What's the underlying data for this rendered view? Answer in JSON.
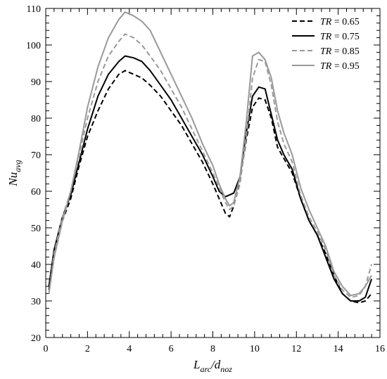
{
  "chart_data": {
    "type": "line",
    "xlabel": "L_arc/d_noz",
    "ylabel": "Nu_avg",
    "xlim": [
      0,
      16
    ],
    "ylim": [
      20,
      110
    ],
    "xticks": [
      0,
      2,
      4,
      6,
      8,
      10,
      12,
      14,
      16
    ],
    "yticks": [
      20,
      30,
      40,
      50,
      60,
      70,
      80,
      90,
      100,
      110
    ],
    "grid": false,
    "legend_position": "top-right",
    "series": [
      {
        "name": "TR = 0.65",
        "style": "dashed",
        "color": "#000000",
        "x": [
          0.15,
          0.4,
          0.8,
          1.2,
          1.6,
          2.0,
          2.5,
          3.0,
          3.5,
          3.8,
          4.2,
          4.6,
          5.0,
          5.5,
          6.0,
          6.5,
          7.0,
          7.5,
          8.0,
          8.3,
          8.6,
          8.8,
          9.0,
          9.3,
          9.6,
          9.9,
          10.2,
          10.5,
          10.8,
          11.1,
          11.4,
          11.8,
          12.2,
          12.6,
          13.0,
          13.4,
          13.8,
          14.2,
          14.6,
          15.0,
          15.3,
          15.6
        ],
        "y": [
          33,
          42,
          52,
          58,
          67,
          75,
          82,
          88,
          92,
          93,
          92,
          91,
          89,
          86,
          82,
          78,
          73,
          68,
          62,
          58,
          54,
          53,
          56,
          63,
          74,
          83,
          85.5,
          85,
          80,
          72,
          69,
          65,
          58,
          52,
          48,
          43,
          37,
          32,
          30,
          29.5,
          30,
          32
        ]
      },
      {
        "name": "TR = 0.75",
        "style": "solid",
        "color": "#000000",
        "x": [
          0.15,
          0.4,
          0.8,
          1.2,
          1.6,
          2.0,
          2.5,
          3.0,
          3.5,
          3.8,
          4.2,
          4.6,
          5.0,
          5.5,
          6.0,
          6.5,
          7.0,
          7.5,
          8.0,
          8.3,
          8.6,
          8.8,
          9.0,
          9.3,
          9.6,
          9.9,
          10.2,
          10.5,
          10.8,
          11.1,
          11.4,
          11.8,
          12.2,
          12.6,
          13.0,
          13.4,
          13.8,
          14.2,
          14.6,
          15.0,
          15.3,
          15.6
        ],
        "y": [
          34,
          44,
          53,
          59,
          68,
          77,
          86,
          92,
          95.5,
          97,
          96.5,
          95.5,
          93,
          89,
          85,
          80,
          75,
          70,
          64,
          60,
          58.5,
          59,
          59.5,
          64,
          76,
          86,
          88.5,
          88,
          81,
          74,
          70,
          66,
          58,
          52,
          48,
          42,
          36,
          32,
          30,
          30,
          31,
          36
        ]
      },
      {
        "name": "TR = 0.85",
        "style": "dashed",
        "color": "#999999",
        "x": [
          0.15,
          0.4,
          0.8,
          1.2,
          1.6,
          2.0,
          2.5,
          3.0,
          3.5,
          3.8,
          4.2,
          4.6,
          5.0,
          5.5,
          6.0,
          6.5,
          7.0,
          7.5,
          8.0,
          8.3,
          8.6,
          8.8,
          9.0,
          9.3,
          9.6,
          9.9,
          10.2,
          10.5,
          10.8,
          11.1,
          11.4,
          11.8,
          12.2,
          12.6,
          13.0,
          13.4,
          13.8,
          14.2,
          14.6,
          15.0,
          15.3,
          15.6
        ],
        "y": [
          32,
          43,
          53,
          60,
          70,
          80,
          90,
          97,
          101,
          103,
          102,
          100,
          97,
          93,
          88,
          83,
          77,
          71,
          65,
          61,
          57,
          55,
          56,
          62,
          75,
          91,
          96,
          95.5,
          89,
          79,
          73,
          68,
          59,
          53,
          49,
          44,
          37,
          33,
          31,
          31.5,
          34,
          40
        ]
      },
      {
        "name": "TR = 0.95",
        "style": "solid",
        "color": "#999999",
        "x": [
          0.15,
          0.4,
          0.8,
          1.2,
          1.6,
          2.0,
          2.5,
          3.0,
          3.5,
          3.8,
          4.2,
          4.6,
          5.0,
          5.5,
          6.0,
          6.5,
          7.0,
          7.5,
          8.0,
          8.3,
          8.6,
          8.8,
          9.0,
          9.3,
          9.6,
          9.9,
          10.2,
          10.5,
          10.8,
          11.1,
          11.4,
          11.8,
          12.2,
          12.6,
          13.0,
          13.4,
          13.8,
          14.2,
          14.6,
          15.0,
          15.3,
          15.6
        ],
        "y": [
          32,
          42,
          52,
          60,
          71,
          83,
          94,
          102,
          107,
          109,
          108,
          106.5,
          104,
          98,
          92,
          86,
          80,
          73,
          67,
          62,
          58,
          56,
          57,
          64,
          79,
          97,
          98,
          96,
          91,
          82,
          76,
          70,
          61,
          55,
          50,
          45,
          38,
          34,
          31.5,
          32,
          34,
          37
        ]
      }
    ]
  }
}
